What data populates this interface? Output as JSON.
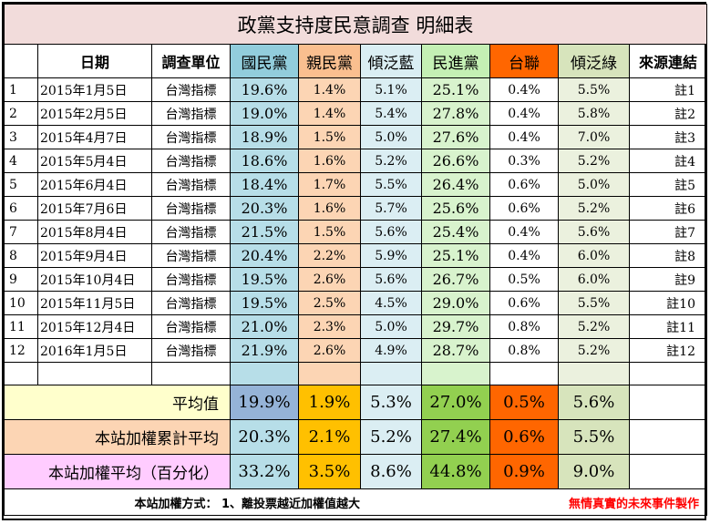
{
  "title": "政黨支持度民意調查 明細表",
  "headers": {
    "num": "",
    "date": "日期",
    "unit": "調查單位",
    "kmt": "國民黨",
    "pfp": "親民黨",
    "blue": "傾泛藍",
    "dpp": "民進黨",
    "tsu": "台聯",
    "green": "傾泛綠",
    "src": "來源連結"
  },
  "rows": [
    {
      "n": "1",
      "date": "2015年1月5日",
      "unit": "台灣指標",
      "kmt": "19.6%",
      "pfp": "1.4%",
      "blue": "5.1%",
      "dpp": "25.1%",
      "tsu": "0.4%",
      "green": "5.5%",
      "src": "註1"
    },
    {
      "n": "2",
      "date": "2015年2月5日",
      "unit": "台灣指標",
      "kmt": "19.0%",
      "pfp": "1.4%",
      "blue": "5.4%",
      "dpp": "27.8%",
      "tsu": "0.4%",
      "green": "5.8%",
      "src": "註2"
    },
    {
      "n": "3",
      "date": "2015年4月7日",
      "unit": "台灣指標",
      "kmt": "18.9%",
      "pfp": "1.5%",
      "blue": "5.0%",
      "dpp": "27.6%",
      "tsu": "0.4%",
      "green": "7.0%",
      "src": "註3"
    },
    {
      "n": "4",
      "date": "2015年5月4日",
      "unit": "台灣指標",
      "kmt": "18.6%",
      "pfp": "1.6%",
      "blue": "5.2%",
      "dpp": "26.6%",
      "tsu": "0.3%",
      "green": "5.2%",
      "src": "註4"
    },
    {
      "n": "5",
      "date": "2015年6月4日",
      "unit": "台灣指標",
      "kmt": "18.4%",
      "pfp": "1.7%",
      "blue": "5.5%",
      "dpp": "26.4%",
      "tsu": "0.6%",
      "green": "5.0%",
      "src": "註5"
    },
    {
      "n": "6",
      "date": "2015年7月6日",
      "unit": "台灣指標",
      "kmt": "20.3%",
      "pfp": "1.6%",
      "blue": "5.7%",
      "dpp": "25.6%",
      "tsu": "0.6%",
      "green": "5.2%",
      "src": "註6"
    },
    {
      "n": "7",
      "date": "2015年8月4日",
      "unit": "台灣指標",
      "kmt": "21.5%",
      "pfp": "1.5%",
      "blue": "5.6%",
      "dpp": "25.4%",
      "tsu": "0.4%",
      "green": "5.6%",
      "src": "註7"
    },
    {
      "n": "8",
      "date": "2015年9月4日",
      "unit": "台灣指標",
      "kmt": "20.4%",
      "pfp": "2.2%",
      "blue": "5.9%",
      "dpp": "25.1%",
      "tsu": "0.4%",
      "green": "6.0%",
      "src": "註8"
    },
    {
      "n": "9",
      "date": "2015年10月4日",
      "unit": "台灣指標",
      "kmt": "19.5%",
      "pfp": "2.6%",
      "blue": "5.6%",
      "dpp": "26.7%",
      "tsu": "0.5%",
      "green": "6.0%",
      "src": "註9"
    },
    {
      "n": "10",
      "date": "2015年11月5日",
      "unit": "台灣指標",
      "kmt": "19.5%",
      "pfp": "2.5%",
      "blue": "4.5%",
      "dpp": "29.0%",
      "tsu": "0.6%",
      "green": "5.5%",
      "src": "註10"
    },
    {
      "n": "11",
      "date": "2015年12月4日",
      "unit": "台灣指標",
      "kmt": "21.0%",
      "pfp": "2.3%",
      "blue": "5.0%",
      "dpp": "29.7%",
      "tsu": "0.8%",
      "green": "5.2%",
      "src": "註11"
    },
    {
      "n": "12",
      "date": "2016年1月5日",
      "unit": "台灣指標",
      "kmt": "21.9%",
      "pfp": "2.6%",
      "blue": "4.9%",
      "dpp": "28.7%",
      "tsu": "0.8%",
      "green": "5.2%",
      "src": "註12"
    }
  ],
  "summary": [
    {
      "label": "平均值",
      "kmt": "19.9%",
      "pfp": "1.9%",
      "blue": "5.3%",
      "dpp": "27.0%",
      "tsu": "0.5%",
      "green": "5.6%"
    },
    {
      "label": "本站加權累計平均",
      "kmt": "20.3%",
      "pfp": "2.1%",
      "blue": "5.2%",
      "dpp": "27.4%",
      "tsu": "0.6%",
      "green": "5.5%"
    },
    {
      "label": "本站加權平均（百分化）",
      "kmt": "33.2%",
      "pfp": "3.5%",
      "blue": "8.6%",
      "dpp": "44.8%",
      "tsu": "0.9%",
      "green": "9.0%"
    }
  ],
  "footer": {
    "method": "本站加權方式： 1、離投票越近加權值越大",
    "credit": "無情真實的未來事件製作"
  },
  "colors": {
    "title_bg": "#f2dcdb",
    "kmt": "#92cddc",
    "pfp": "#fabf8f",
    "dpp": "#c4f0b4",
    "tsu": "#ff6600",
    "green": "#d7e4bc"
  }
}
